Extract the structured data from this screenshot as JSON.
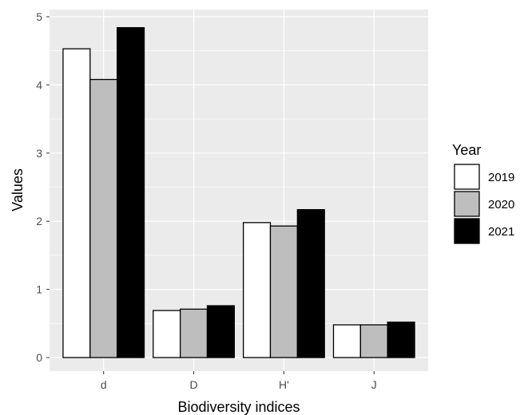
{
  "chart_data": {
    "type": "bar",
    "categories": [
      "d",
      "D",
      "H'",
      "J"
    ],
    "series": [
      {
        "name": "2019",
        "values": [
          4.53,
          0.69,
          1.98,
          0.48
        ],
        "color": "#ffffff"
      },
      {
        "name": "2020",
        "values": [
          4.08,
          0.71,
          1.93,
          0.48
        ],
        "color": "#bebebe"
      },
      {
        "name": "2021",
        "values": [
          4.84,
          0.76,
          2.17,
          0.52
        ],
        "color": "#000000"
      }
    ],
    "xlabel": "Biodiversity indices",
    "ylabel": "Values",
    "ylim": [
      0,
      5
    ],
    "yticks": [
      0,
      1,
      2,
      3,
      4,
      5
    ],
    "ytick_labels": [
      "0",
      "1",
      "2",
      "3",
      "4",
      "5"
    ],
    "legend_title": "Year",
    "legend_position": "right",
    "grid": true,
    "panel_color": "#ebebeb",
    "bar_edge_color": "#000000"
  }
}
